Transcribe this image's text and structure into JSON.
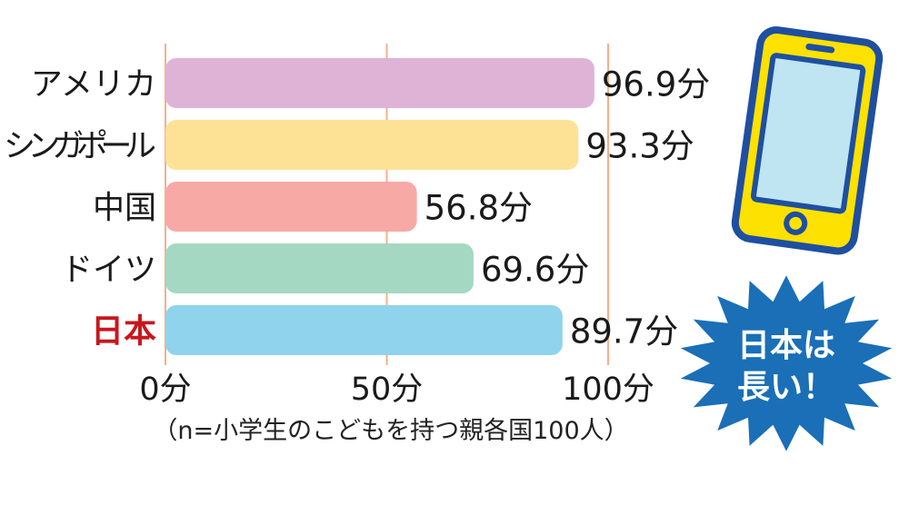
{
  "chart_data": {
    "type": "bar",
    "orientation": "horizontal",
    "categories": [
      "アメリカ",
      "シンガポール",
      "中国",
      "ドイツ",
      "日本"
    ],
    "values": [
      96.9,
      93.3,
      56.8,
      69.6,
      89.7
    ],
    "value_labels": [
      "96.9分",
      "93.3分",
      "56.8分",
      "69.6分",
      "89.7分"
    ],
    "bar_colors": [
      "#dfb3d6",
      "#fde296",
      "#f7a9a6",
      "#a4d8c3",
      "#8fd3ec"
    ],
    "highlight_category": "日本",
    "highlight_color": "#c8161d",
    "xlim": [
      0,
      100
    ],
    "x_ticks": [
      0,
      50,
      100
    ],
    "x_tick_labels": [
      "0分",
      "50分",
      "100分"
    ],
    "grid": "vertical",
    "gridline_color": "#f3b08a"
  },
  "note": "（n=小学生のこどもを持つ親各国100人）",
  "badge": {
    "line1": "日本は",
    "line2": "長い！",
    "color": "#1a6fb7"
  },
  "phone_icon": {
    "name": "smartphone-icon",
    "body_color": "#fde100",
    "outline_color": "#1f4fa0",
    "screen_color": "#bfe4f2"
  }
}
